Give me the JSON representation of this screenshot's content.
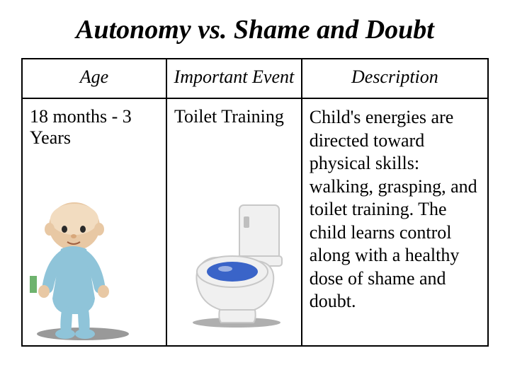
{
  "title": "Autonomy vs. Shame and Doubt",
  "columns": {
    "age": "Age",
    "event": "Important Event",
    "description": "Description"
  },
  "row": {
    "age": "18 months - 3 Years",
    "event": "Toilet Training",
    "description": "Child's energies are directed toward physical skills: walking, grasping, and toilet training. The child learns control along with a healthy dose of shame and doubt."
  },
  "colors": {
    "baby_skin": "#e8c8a4",
    "baby_suit": "#8fc4d9",
    "floor_shadow": "#6e6e6e",
    "toilet_body": "#f0f0f0",
    "toilet_shade": "#c8c8c8",
    "toilet_water": "#3a64c8",
    "toilet_handle": "#bfbfbf",
    "green_tint": "#4aa04a"
  },
  "column_widths": [
    "31%",
    "29%",
    "40%"
  ]
}
